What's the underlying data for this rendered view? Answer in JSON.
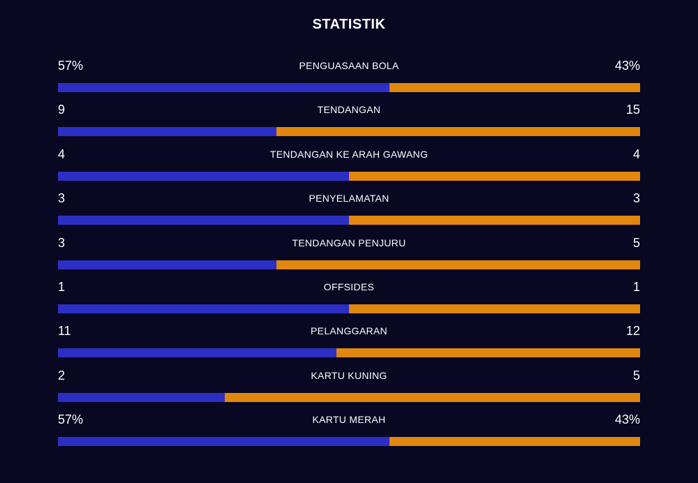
{
  "title": "STATISTIK",
  "colors": {
    "background": "#080822",
    "home": "#2d2fc4",
    "away": "#e2870d",
    "text": "#ffffff"
  },
  "stats": [
    {
      "label": "PENGUASAAN BOLA",
      "home": "57%",
      "away": "43%",
      "home_share": 0.57
    },
    {
      "label": "TENDANGAN",
      "home": "9",
      "away": "15",
      "home_share": 0.375
    },
    {
      "label": "TENDANGAN KE ARAH GAWANG",
      "home": "4",
      "away": "4",
      "home_share": 0.5
    },
    {
      "label": "PENYELAMATAN",
      "home": "3",
      "away": "3",
      "home_share": 0.5
    },
    {
      "label": "TENDANGAN PENJURU",
      "home": "3",
      "away": "5",
      "home_share": 0.375
    },
    {
      "label": "OFFSIDES",
      "home": "1",
      "away": "1",
      "home_share": 0.5
    },
    {
      "label": "PELANGGARAN",
      "home": "11",
      "away": "12",
      "home_share": 0.478
    },
    {
      "label": "KARTU KUNING",
      "home": "2",
      "away": "5",
      "home_share": 0.286
    },
    {
      "label": "KARTU MERAH",
      "home": "57%",
      "away": "43%",
      "home_share": 0.57
    }
  ]
}
